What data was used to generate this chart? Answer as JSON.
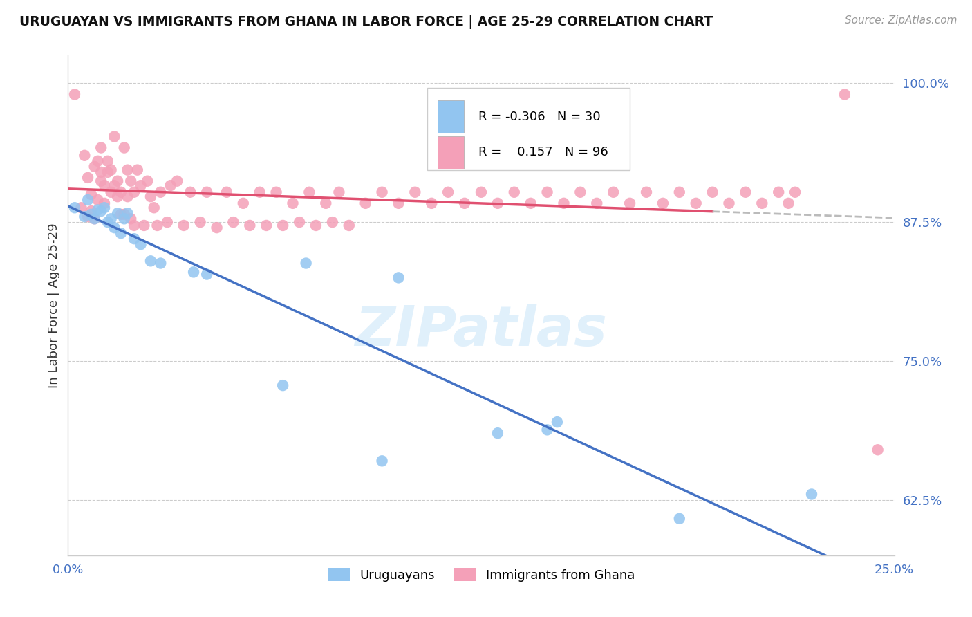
{
  "title": "URUGUAYAN VS IMMIGRANTS FROM GHANA IN LABOR FORCE | AGE 25-29 CORRELATION CHART",
  "source": "Source: ZipAtlas.com",
  "ylabel": "In Labor Force | Age 25-29",
  "legend_blue_r": "-0.306",
  "legend_blue_n": "30",
  "legend_pink_r": "0.157",
  "legend_pink_n": "96",
  "legend_blue_label": "Uruguayans",
  "legend_pink_label": "Immigrants from Ghana",
  "watermark": "ZIPatlas",
  "blue_color": "#92C5F0",
  "pink_color": "#F4A0B8",
  "line_blue": "#4472C4",
  "line_pink": "#E05070",
  "line_dash_color": "#BBBBBB",
  "xmin": 0.0,
  "xmax": 0.25,
  "ymin": 0.575,
  "ymax": 1.025,
  "blue_scatter_x": [
    0.002,
    0.005,
    0.006,
    0.007,
    0.008,
    0.009,
    0.01,
    0.011,
    0.012,
    0.013,
    0.014,
    0.015,
    0.016,
    0.017,
    0.018,
    0.02,
    0.022,
    0.025,
    0.028,
    0.038,
    0.042,
    0.065,
    0.072,
    0.095,
    0.1,
    0.13,
    0.145,
    0.148,
    0.185,
    0.225
  ],
  "blue_scatter_y": [
    0.888,
    0.88,
    0.895,
    0.882,
    0.878,
    0.886,
    0.885,
    0.888,
    0.875,
    0.878,
    0.87,
    0.883,
    0.865,
    0.878,
    0.883,
    0.86,
    0.855,
    0.84,
    0.838,
    0.83,
    0.828,
    0.728,
    0.838,
    0.66,
    0.825,
    0.685,
    0.688,
    0.695,
    0.608,
    0.63
  ],
  "pink_scatter_x": [
    0.002,
    0.004,
    0.005,
    0.006,
    0.006,
    0.007,
    0.007,
    0.008,
    0.008,
    0.009,
    0.009,
    0.01,
    0.01,
    0.01,
    0.011,
    0.011,
    0.012,
    0.012,
    0.013,
    0.013,
    0.014,
    0.014,
    0.015,
    0.015,
    0.016,
    0.016,
    0.017,
    0.017,
    0.018,
    0.018,
    0.019,
    0.019,
    0.02,
    0.02,
    0.021,
    0.022,
    0.023,
    0.024,
    0.025,
    0.026,
    0.027,
    0.028,
    0.03,
    0.031,
    0.033,
    0.035,
    0.037,
    0.04,
    0.042,
    0.045,
    0.048,
    0.05,
    0.053,
    0.055,
    0.058,
    0.06,
    0.063,
    0.065,
    0.068,
    0.07,
    0.073,
    0.075,
    0.078,
    0.08,
    0.082,
    0.085,
    0.09,
    0.095,
    0.1,
    0.105,
    0.11,
    0.115,
    0.12,
    0.125,
    0.13,
    0.135,
    0.14,
    0.145,
    0.15,
    0.155,
    0.16,
    0.165,
    0.17,
    0.175,
    0.18,
    0.185,
    0.19,
    0.195,
    0.2,
    0.205,
    0.21,
    0.215,
    0.218,
    0.22,
    0.235,
    0.245
  ],
  "pink_scatter_y": [
    0.99,
    0.888,
    0.935,
    0.915,
    0.88,
    0.9,
    0.885,
    0.925,
    0.878,
    0.93,
    0.895,
    0.942,
    0.92,
    0.912,
    0.908,
    0.892,
    0.93,
    0.92,
    0.922,
    0.902,
    0.952,
    0.908,
    0.898,
    0.912,
    0.882,
    0.902,
    0.942,
    0.882,
    0.922,
    0.898,
    0.912,
    0.878,
    0.902,
    0.872,
    0.922,
    0.908,
    0.872,
    0.912,
    0.898,
    0.888,
    0.872,
    0.902,
    0.875,
    0.908,
    0.912,
    0.872,
    0.902,
    0.875,
    0.902,
    0.87,
    0.902,
    0.875,
    0.892,
    0.872,
    0.902,
    0.872,
    0.902,
    0.872,
    0.892,
    0.875,
    0.902,
    0.872,
    0.892,
    0.875,
    0.902,
    0.872,
    0.892,
    0.902,
    0.892,
    0.902,
    0.892,
    0.902,
    0.892,
    0.902,
    0.892,
    0.902,
    0.892,
    0.902,
    0.892,
    0.902,
    0.892,
    0.902,
    0.892,
    0.902,
    0.892,
    0.902,
    0.892,
    0.902,
    0.892,
    0.902,
    0.892,
    0.902,
    0.892,
    0.902,
    0.99,
    0.67
  ]
}
